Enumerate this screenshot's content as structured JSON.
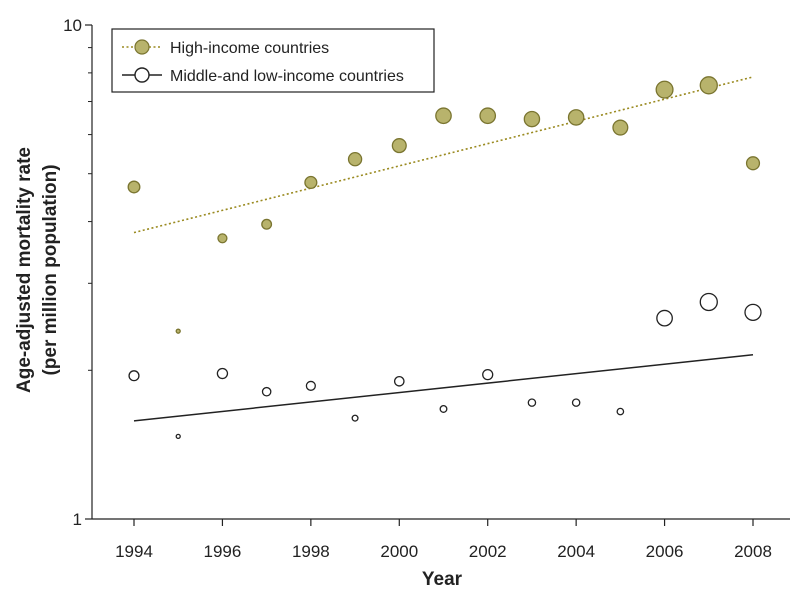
{
  "chart_data": {
    "type": "scatter",
    "xlabel": "Year",
    "ylabel_line1": "Age-adjusted mortality rate",
    "ylabel_line2": "(per million population)",
    "y_scale": "log",
    "ylim": [
      1,
      10
    ],
    "xlim": [
      1993,
      2009
    ],
    "x_ticks": [
      1994,
      1996,
      1998,
      2000,
      2002,
      2004,
      2006,
      2008
    ],
    "y_ticks": [
      {
        "value": 1,
        "label": "1"
      },
      {
        "value": 10,
        "label": "10"
      }
    ],
    "grid": false,
    "legend_position": "top-left",
    "series": [
      {
        "name": "High-income countries",
        "marker_color": "#b8b36c",
        "marker_edge": "#7a7530",
        "trend_color": "#9a8a20",
        "trend_style": "dotted",
        "points": [
          {
            "x": 1994,
            "y": 4.7
          },
          {
            "x": 1995,
            "y": 2.4
          },
          {
            "x": 1996,
            "y": 3.7
          },
          {
            "x": 1997,
            "y": 3.95
          },
          {
            "x": 1998,
            "y": 4.8
          },
          {
            "x": 1999,
            "y": 5.35
          },
          {
            "x": 2000,
            "y": 5.7
          },
          {
            "x": 2001,
            "y": 6.55
          },
          {
            "x": 2002,
            "y": 6.55
          },
          {
            "x": 2003,
            "y": 6.45
          },
          {
            "x": 2004,
            "y": 6.5
          },
          {
            "x": 2005,
            "y": 6.2
          },
          {
            "x": 2006,
            "y": 7.4
          },
          {
            "x": 2007,
            "y": 7.55
          },
          {
            "x": 2008,
            "y": 5.25
          }
        ],
        "trend": {
          "x": [
            1994,
            2008
          ],
          "y": [
            3.8,
            7.85
          ]
        }
      },
      {
        "name": "Middle-and low-income countries",
        "marker_color": "#ffffff",
        "marker_edge": "#222222",
        "trend_color": "#222222",
        "trend_style": "solid",
        "points": [
          {
            "x": 1994,
            "y": 1.95
          },
          {
            "x": 1995,
            "y": 1.47
          },
          {
            "x": 1996,
            "y": 1.97
          },
          {
            "x": 1997,
            "y": 1.81
          },
          {
            "x": 1998,
            "y": 1.86
          },
          {
            "x": 1999,
            "y": 1.6
          },
          {
            "x": 2000,
            "y": 1.9
          },
          {
            "x": 2001,
            "y": 1.67
          },
          {
            "x": 2002,
            "y": 1.96
          },
          {
            "x": 2003,
            "y": 1.72
          },
          {
            "x": 2004,
            "y": 1.72
          },
          {
            "x": 2005,
            "y": 1.65
          },
          {
            "x": 2006,
            "y": 2.55
          },
          {
            "x": 2007,
            "y": 2.75
          },
          {
            "x": 2008,
            "y": 2.62
          }
        ],
        "trend": {
          "x": [
            1994,
            2008
          ],
          "y": [
            1.58,
            2.15
          ]
        }
      }
    ]
  }
}
